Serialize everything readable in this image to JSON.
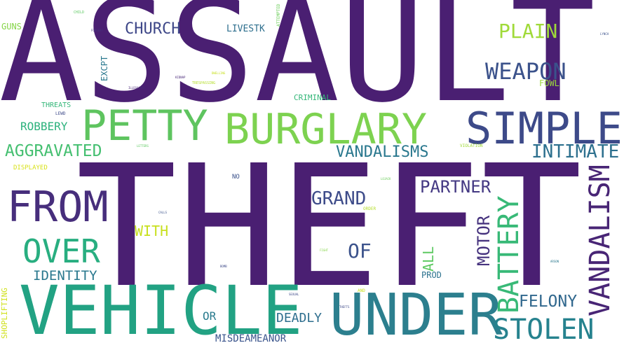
{
  "words": [
    {
      "id": "assault",
      "text": "ASSAULT",
      "color": "#4a1f72"
    },
    {
      "id": "theft",
      "text": "THEFT",
      "color": "#4a1f72"
    },
    {
      "id": "vehicle",
      "text": "VEHICLE",
      "color": "#22a283"
    },
    {
      "id": "under",
      "text": "UNDER",
      "color": "#2c7f8e"
    },
    {
      "id": "petty",
      "text": "PETTY",
      "color": "#5ec45f"
    },
    {
      "id": "burglary",
      "text": "BURGLARY",
      "color": "#7dd250"
    },
    {
      "id": "simple",
      "text": "SIMPLE",
      "color": "#3d4a89"
    },
    {
      "id": "from",
      "text": "FROM",
      "color": "#472e7c"
    },
    {
      "id": "over",
      "text": "OVER",
      "color": "#28ae80"
    },
    {
      "id": "stolen",
      "text": "STOLEN",
      "color": "#26828e"
    },
    {
      "id": "vandalism",
      "text": "VANDALISM",
      "color": "#482575"
    },
    {
      "id": "battery",
      "text": "BATTERY",
      "color": "#38b977"
    },
    {
      "id": "weapon",
      "text": "WEAPON",
      "color": "#3b528b"
    },
    {
      "id": "plain",
      "text": "PLAIN",
      "color": "#a0da39"
    },
    {
      "id": "church",
      "text": "CHURCH",
      "color": "#3f4889"
    },
    {
      "id": "intimate",
      "text": "INTIMATE",
      "color": "#2d708e"
    },
    {
      "id": "aggravated",
      "text": "AGGRAVATED",
      "color": "#44bf70"
    },
    {
      "id": "vandalisms",
      "text": "VANDALISMS",
      "color": "#2a788e"
    },
    {
      "id": "partner",
      "text": "PARTNER",
      "color": "#443983"
    },
    {
      "id": "grand",
      "text": "GRAND",
      "color": "#3e4c8a"
    },
    {
      "id": "of",
      "text": "OF",
      "color": "#3b528b"
    },
    {
      "id": "motor",
      "text": "MOTOR",
      "color": "#46337e"
    },
    {
      "id": "felony",
      "text": "FELONY",
      "color": "#31688e"
    },
    {
      "id": "deadly",
      "text": "DEADLY",
      "color": "#2e6e8e"
    },
    {
      "id": "identity",
      "text": "IDENTITY",
      "color": "#2a788e"
    },
    {
      "id": "with",
      "text": "WITH",
      "color": "#c8e020"
    },
    {
      "id": "robbery",
      "text": "ROBBERY",
      "color": "#2db27d"
    },
    {
      "id": "all",
      "text": "ALL",
      "color": "#5ec962"
    },
    {
      "id": "prod",
      "text": "PROD",
      "color": "#2c728e"
    },
    {
      "id": "or",
      "text": "OR",
      "color": "#2a7b8e"
    },
    {
      "id": "misdemeanor",
      "text": "MISDEAMEANOR",
      "color": "#3a548c"
    },
    {
      "id": "livestk",
      "text": "LIVESTK",
      "color": "#2e6f8e"
    },
    {
      "id": "guns",
      "text": "GUNS",
      "color": "#86d549"
    },
    {
      "id": "fowl",
      "text": "FOWL",
      "color": "#9bd93c"
    },
    {
      "id": "excpt",
      "text": "EXCPT",
      "color": "#2a788e"
    },
    {
      "id": "threats",
      "text": "THREATS",
      "color": "#35b779"
    },
    {
      "id": "criminal",
      "text": "CRIMINAL",
      "color": "#35b779"
    },
    {
      "id": "displayed",
      "text": "DISPLAYED",
      "color": "#d8e219"
    },
    {
      "id": "shoplifting",
      "text": "SHOPLIFTING",
      "color": "#d0e11c"
    },
    {
      "id": "no",
      "text": "NO",
      "color": "#3b528b"
    },
    {
      "id": "attempted",
      "text": "ATTEMPTED",
      "color": "#6ccd5a"
    },
    {
      "id": "trespassing",
      "text": "TRESPASSING",
      "color": "#b5de2b"
    },
    {
      "id": "lewd",
      "text": "LEWD",
      "color": "#3e4a89"
    },
    {
      "id": "child",
      "text": "CHILD",
      "color": "#5ec962"
    },
    {
      "id": "illegal-tiny",
      "text": "ILLEGALMNR",
      "color": "#482878"
    },
    {
      "id": "dwelling-tiny",
      "text": "DWELLING",
      "color": "#c8e020"
    },
    {
      "id": "violation",
      "text": "VIOLATION",
      "color": "#a0da39"
    },
    {
      "id": "order",
      "text": "ORDER",
      "color": "#b5de2b"
    },
    {
      "id": "and",
      "text": "AND",
      "color": "#c8e020"
    },
    {
      "id": "sexual",
      "text": "SEXUAL",
      "color": "#3e4a89"
    },
    {
      "id": "calls",
      "text": "CALLS",
      "color": "#3b528b"
    },
    {
      "id": "kidnap-tiny",
      "text": "KIDNAP",
      "color": "#482878"
    },
    {
      "id": "lojack-tiny",
      "text": "LOJACK",
      "color": "#6ccd5a"
    },
    {
      "id": "forgery-tiny",
      "text": "FORGERY",
      "color": "#46337e"
    },
    {
      "id": "letters-tiny",
      "text": "LETTERS",
      "color": "#5ec962"
    },
    {
      "id": "lynch-tiny",
      "text": "LYNCH",
      "color": "#3b528b"
    },
    {
      "id": "arson-tiny",
      "text": "ARSON",
      "color": "#2a788e"
    },
    {
      "id": "fight-tiny",
      "text": "FIGHT",
      "color": "#86d549"
    },
    {
      "id": "bomb-tiny",
      "text": "BOMB",
      "color": "#3e4a89"
    },
    {
      "id": "theft-tiny",
      "text": "THEFTS",
      "color": "#3e4a89"
    }
  ]
}
